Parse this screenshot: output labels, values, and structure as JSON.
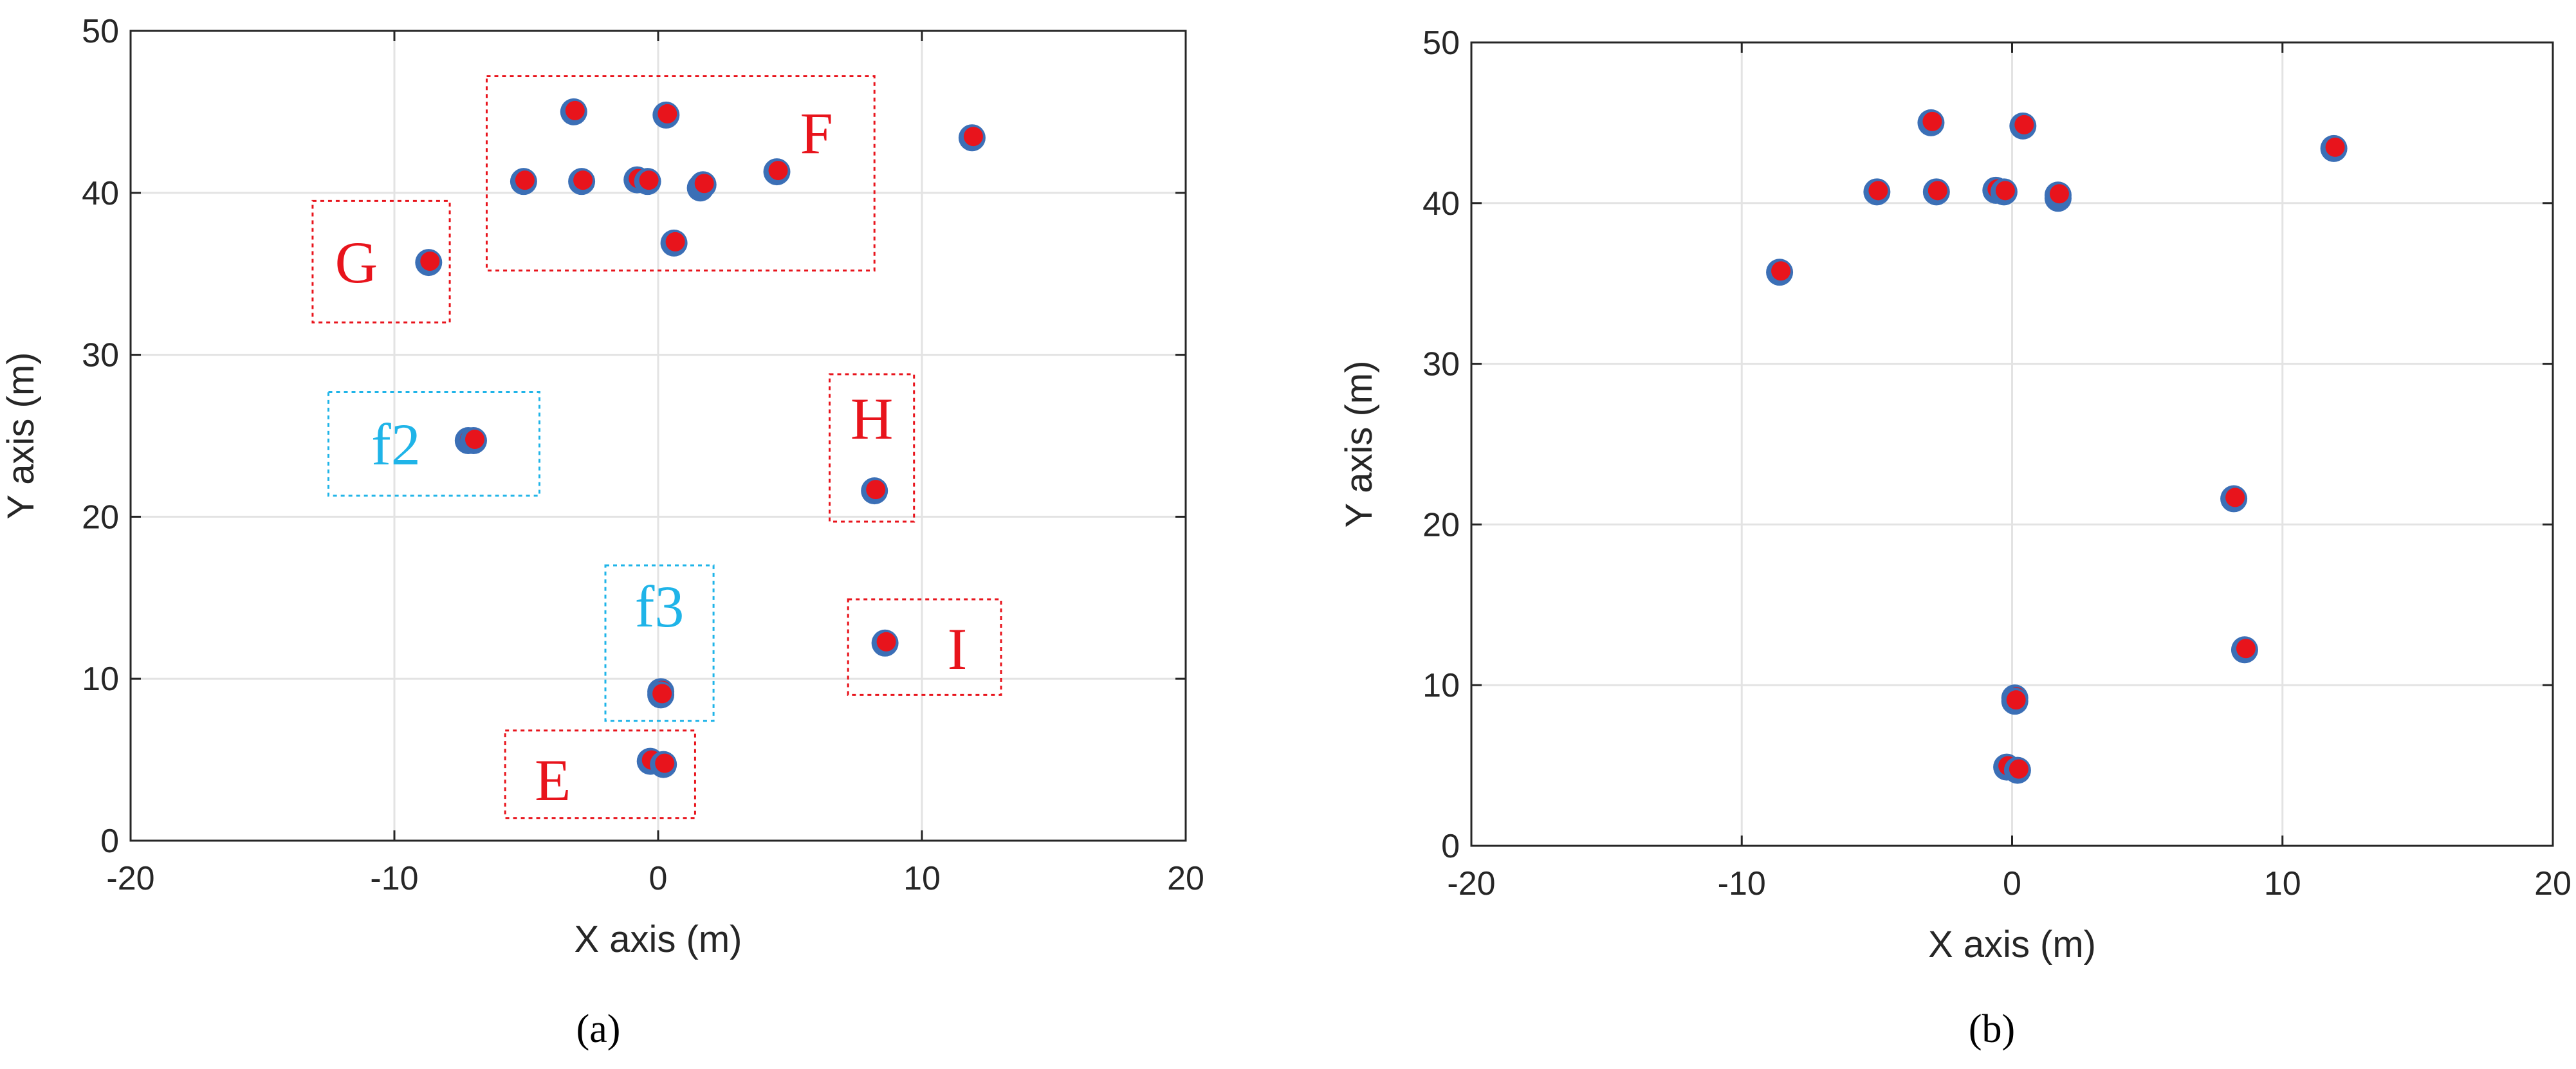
{
  "colors": {
    "marker_outer": "#3b6fb6",
    "marker_inner": "#e8141c",
    "red_box": "#e8141c",
    "cyan_box": "#1fb4e8",
    "grid": "#e3e3e3",
    "axis": "#262626"
  },
  "chart_data": [
    {
      "type": "scatter",
      "panel_label": "(a)",
      "xlabel": "X axis (m)",
      "ylabel": "Y axis (m)",
      "xlim": [
        -20,
        20
      ],
      "ylim": [
        0,
        50
      ],
      "xticks": [
        -20,
        -10,
        0,
        10,
        20
      ],
      "yticks": [
        0,
        10,
        20,
        30,
        40,
        50
      ],
      "grid": true,
      "points": [
        {
          "x": -3.2,
          "y": 45.0
        },
        {
          "x": 0.3,
          "y": 44.8
        },
        {
          "x": -5.1,
          "y": 40.7
        },
        {
          "x": -2.9,
          "y": 40.7
        },
        {
          "x": -0.8,
          "y": 40.8
        },
        {
          "x": -0.4,
          "y": 40.7
        },
        {
          "x": 1.6,
          "y": 40.3
        },
        {
          "x": 1.7,
          "y": 40.5
        },
        {
          "x": 4.5,
          "y": 41.3
        },
        {
          "x": 0.6,
          "y": 36.9
        },
        {
          "x": 11.9,
          "y": 43.4
        },
        {
          "x": -8.7,
          "y": 35.7
        },
        {
          "x": -7.2,
          "y": 24.7
        },
        {
          "x": -7.0,
          "y": 24.7
        },
        {
          "x": 8.2,
          "y": 21.6
        },
        {
          "x": 0.1,
          "y": 9.2
        },
        {
          "x": 0.1,
          "y": 9.0
        },
        {
          "x": 8.6,
          "y": 12.2
        },
        {
          "x": -0.3,
          "y": 4.9
        },
        {
          "x": 0.2,
          "y": 4.7
        }
      ],
      "annotations": [
        {
          "label": "F",
          "color": "red",
          "x0": -6.5,
          "x1": 8.2,
          "y0": 35.2,
          "y1": 47.2
        },
        {
          "label": "G",
          "color": "red",
          "x0": -13.1,
          "x1": -7.9,
          "y0": 32.0,
          "y1": 39.5
        },
        {
          "label": "f2",
          "color": "cyan",
          "x0": -12.5,
          "x1": -4.5,
          "y0": 21.3,
          "y1": 27.7
        },
        {
          "label": "H",
          "color": "red",
          "x0": 6.5,
          "x1": 9.7,
          "y0": 19.7,
          "y1": 28.8
        },
        {
          "label": "f3",
          "color": "cyan",
          "x0": -2.0,
          "x1": 2.1,
          "y0": 7.4,
          "y1": 17.0
        },
        {
          "label": "I",
          "color": "red",
          "x0": 7.2,
          "x1": 13.0,
          "y0": 9.0,
          "y1": 14.9
        },
        {
          "label": "E",
          "color": "red",
          "x0": -5.8,
          "x1": 1.4,
          "y0": 1.4,
          "y1": 6.8
        }
      ]
    },
    {
      "type": "scatter",
      "panel_label": "(b)",
      "xlabel": "X axis (m)",
      "ylabel": "Y axis (m)",
      "xlim": [
        -20,
        20
      ],
      "ylim": [
        0,
        50
      ],
      "xticks": [
        -20,
        -10,
        0,
        10,
        20
      ],
      "yticks": [
        0,
        10,
        20,
        30,
        40,
        50
      ],
      "grid": true,
      "points": [
        {
          "x": -3.0,
          "y": 45.0
        },
        {
          "x": 0.4,
          "y": 44.8
        },
        {
          "x": -5.0,
          "y": 40.7
        },
        {
          "x": -2.8,
          "y": 40.7
        },
        {
          "x": -0.6,
          "y": 40.8
        },
        {
          "x": -0.3,
          "y": 40.7
        },
        {
          "x": 1.7,
          "y": 40.3
        },
        {
          "x": 1.7,
          "y": 40.5
        },
        {
          "x": 11.9,
          "y": 43.4
        },
        {
          "x": -8.6,
          "y": 35.7
        },
        {
          "x": 8.2,
          "y": 21.6
        },
        {
          "x": 0.1,
          "y": 9.2
        },
        {
          "x": 0.1,
          "y": 9.0
        },
        {
          "x": 8.6,
          "y": 12.2
        },
        {
          "x": -0.2,
          "y": 4.9
        },
        {
          "x": 0.2,
          "y": 4.7
        }
      ]
    }
  ]
}
